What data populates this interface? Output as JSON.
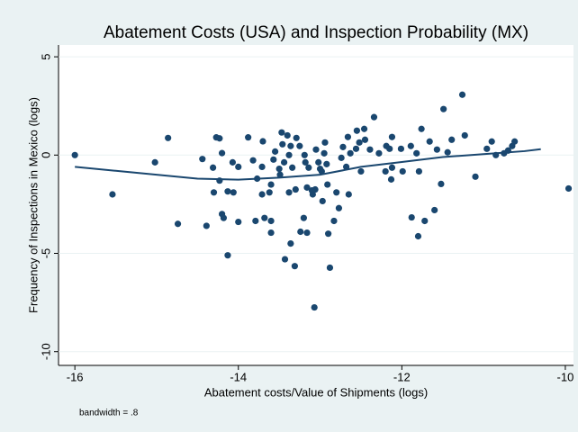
{
  "chart_data": {
    "type": "scatter",
    "title": "Abatement Costs (USA) and Inspection Probability (MX)",
    "x_label": "Abatement costs/Value of Shipments (logs)",
    "y_label": "Frequency of Inspections in Mexico (logs)",
    "note": "bandwidth = .8",
    "xlim": [
      -16.2,
      -9.9
    ],
    "ylim": [
      -10.7,
      5.6
    ],
    "xticks": [
      -16,
      -14,
      -12,
      -10
    ],
    "yticks": [
      -10,
      -5,
      0,
      5
    ],
    "grid": true,
    "color": "#1a476f",
    "series": [
      {
        "color": "#1a476f",
        "x": [
          -16,
          -15.54,
          -15.02,
          -14.86,
          -14.74,
          -14.44,
          -14.39,
          -14.31,
          -14.3,
          -14.27,
          -14.23,
          -14.2,
          -14.23,
          -14.2,
          -14.18,
          -14.13,
          -14.13,
          -14.07,
          -14.06,
          -14.0,
          -14.0,
          -13.88,
          -13.82,
          -13.79,
          -13.77,
          -13.71,
          -13.7,
          -13.71,
          -13.68,
          -13.62,
          -13.6,
          -13.6,
          -13.6,
          -13.57,
          -13.55,
          -13.5,
          -13.49,
          -13.47,
          -13.46,
          -13.44,
          -13.43,
          -13.4,
          -13.38,
          -13.38,
          -13.36,
          -13.34,
          -13.36,
          -13.31,
          -13.3,
          -13.29,
          -13.25,
          -13.24,
          -13.2,
          -13.19,
          -13.18,
          -13.16,
          -13.16,
          -13.14,
          -13.1,
          -13.09,
          -13.07,
          -13.06,
          -13.05,
          -13.02,
          -13.0,
          -12.98,
          -12.97,
          -12.95,
          -12.94,
          -12.92,
          -12.91,
          -12.9,
          -12.88,
          -12.83,
          -12.8,
          -12.77,
          -12.74,
          -12.72,
          -12.68,
          -12.66,
          -12.65,
          -12.63,
          -12.56,
          -12.55,
          -12.52,
          -12.5,
          -12.46,
          -12.45,
          -12.39,
          -12.34,
          -12.28,
          -12.2,
          -12.19,
          -12.15,
          -12.13,
          -12.12,
          -12.12,
          -12.01,
          -11.99,
          -11.89,
          -11.88,
          -11.82,
          -11.8,
          -11.79,
          -11.76,
          -11.72,
          -11.66,
          -11.6,
          -11.57,
          -11.52,
          -11.49,
          -11.44,
          -11.39,
          -11.26,
          -11.23,
          -11.1,
          -10.96,
          -10.9,
          -10.85,
          -10.75,
          -10.7,
          -10.65,
          -10.62,
          -9.96
        ],
        "y": [
          0,
          -2.0,
          -0.37,
          0.87,
          -3.5,
          -0.2,
          -3.6,
          -0.64,
          -1.9,
          0.9,
          0.85,
          0.1,
          -1.3,
          -3.0,
          -3.2,
          -1.85,
          -5.1,
          -0.37,
          -1.9,
          -0.6,
          -3.4,
          0.9,
          -0.27,
          -3.35,
          -1.2,
          -0.6,
          0.7,
          -2.0,
          -3.2,
          -1.9,
          -3.35,
          -3.95,
          -1.5,
          -0.23,
          0.18,
          -0.7,
          -1.0,
          1.15,
          0.55,
          -0.37,
          -5.3,
          1.0,
          0,
          -1.9,
          0.46,
          -0.64,
          -4.5,
          -5.65,
          -1.75,
          0.87,
          0.46,
          -3.9,
          -3.2,
          0,
          -0.37,
          -1.65,
          -3.95,
          -0.64,
          -1.8,
          -2.0,
          -7.75,
          -1.75,
          0.28,
          -0.37,
          -0.7,
          -0.83,
          -2.34,
          0.09,
          0.64,
          -0.46,
          -1.5,
          -4.0,
          -5.73,
          -3.35,
          -1.9,
          -2.7,
          -0.14,
          0.41,
          -0.6,
          0.92,
          -2.0,
          0.09,
          0.32,
          1.24,
          0.64,
          -0.83,
          1.33,
          0.78,
          0.28,
          1.93,
          0.09,
          -0.83,
          0.46,
          0.32,
          -1.24,
          -0.64,
          0.92,
          0.32,
          -0.83,
          0.46,
          -3.17,
          0.09,
          -4.13,
          -0.83,
          1.33,
          -3.35,
          0.69,
          -2.8,
          0.28,
          -1.47,
          2.34,
          0.14,
          0.78,
          3.07,
          1.0,
          -1.1,
          0.32,
          0.69,
          0,
          0.09,
          0.23,
          0.46,
          0.69,
          -1.7
        ]
      }
    ],
    "line": {
      "color": "#1a476f",
      "x": [
        -16,
        -15.5,
        -15,
        -14.5,
        -14,
        -13.5,
        -13,
        -12.5,
        -12,
        -11.5,
        -11,
        -10.5,
        -10.3
      ],
      "y": [
        -0.6,
        -0.8,
        -1.0,
        -1.2,
        -1.25,
        -1.15,
        -1.0,
        -0.6,
        -0.35,
        -0.1,
        0.05,
        0.2,
        0.3
      ]
    }
  }
}
